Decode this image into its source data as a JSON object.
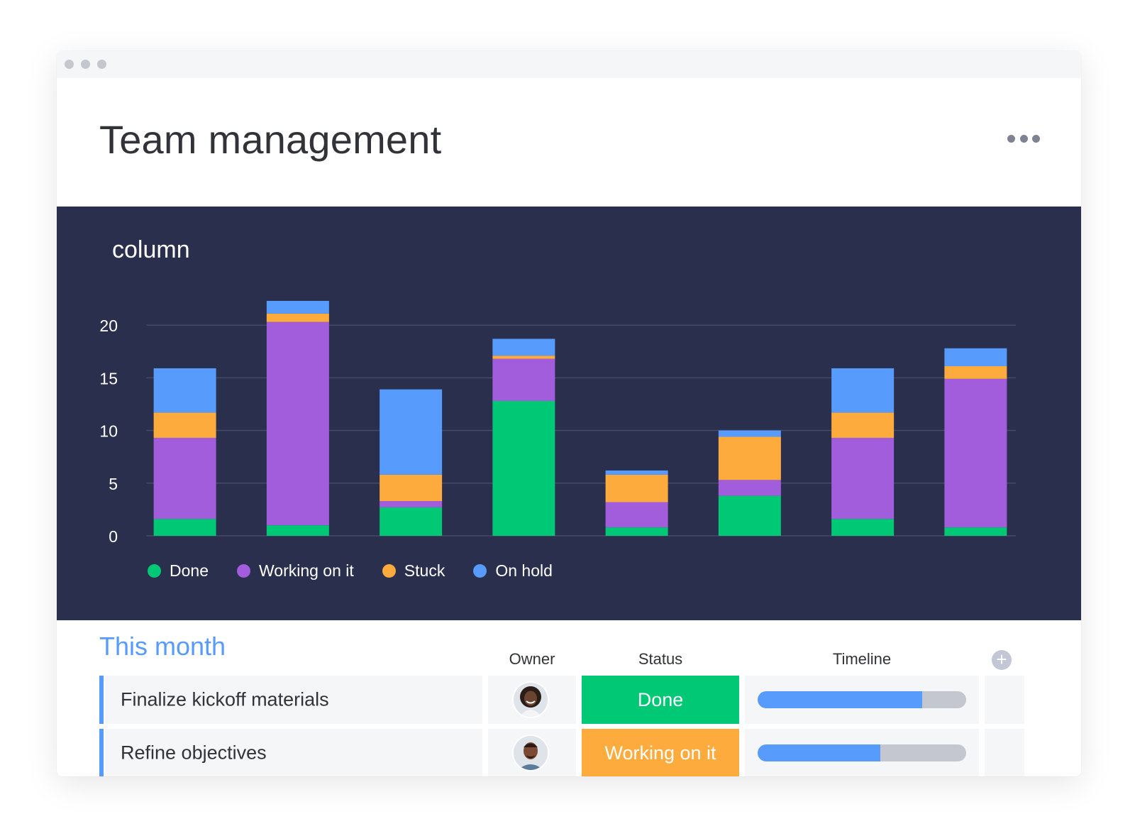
{
  "header": {
    "title": "Team management"
  },
  "chart_panel": {
    "title": "column",
    "chart_data": {
      "type": "bar",
      "stacked": true,
      "title": "column",
      "categories": [
        "",
        "",
        "",
        "",
        "",
        "",
        "",
        ""
      ],
      "yticks": [
        0,
        5,
        10,
        15,
        20
      ],
      "ylim": [
        0,
        22.5
      ],
      "grid": true,
      "legend_position": "bottom-left",
      "series": [
        {
          "name": "Done",
          "color": "#00c875",
          "values": [
            1.6,
            1.0,
            2.7,
            12.8,
            0.8,
            3.8,
            1.6,
            0.8
          ]
        },
        {
          "name": "Working on it",
          "color": "#a25ddc",
          "values": [
            7.7,
            19.3,
            0.6,
            4.0,
            2.4,
            1.5,
            7.7,
            14.1
          ]
        },
        {
          "name": "Stuck",
          "color": "#fdab3d",
          "values": [
            2.4,
            0.8,
            2.5,
            0.3,
            2.6,
            4.1,
            2.4,
            1.2
          ]
        },
        {
          "name": "On hold",
          "color": "#579bfc",
          "values": [
            4.2,
            1.2,
            8.1,
            1.6,
            0.4,
            0.6,
            4.2,
            1.7
          ]
        }
      ]
    }
  },
  "board": {
    "group_title": "This month",
    "columns": {
      "owner": "Owner",
      "status": "Status",
      "timeline": "Timeline"
    },
    "add_column_icon": "plus-icon",
    "rows": [
      {
        "name": "Finalize kickoff materials",
        "status": "Done",
        "status_color": "#00c875",
        "timeline_progress": 0.79
      },
      {
        "name": "Refine objectives",
        "status": "Working on it",
        "status_color": "#fdab3d",
        "timeline_progress": 0.59
      }
    ]
  }
}
